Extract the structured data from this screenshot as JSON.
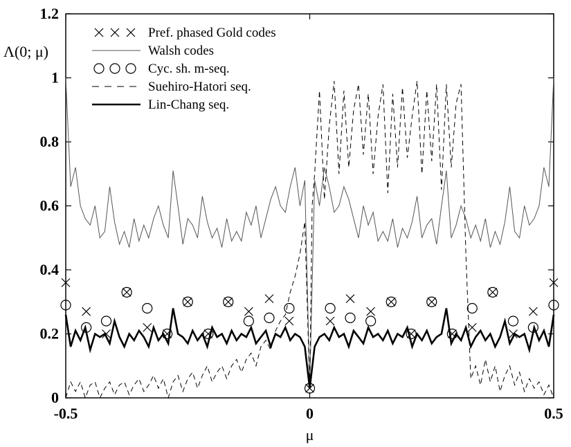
{
  "chart_data": {
    "type": "line",
    "title": "",
    "xlabel": "μ",
    "ylabel": "Λ(0; μ)",
    "xlim": [
      -0.5,
      0.5
    ],
    "ylim": [
      0,
      1.2
    ],
    "x_ticks": [
      "-0.5",
      "0",
      "0.5"
    ],
    "y_ticks": [
      "0",
      "0.2",
      "0.4",
      "0.6",
      "0.8",
      "1",
      "1.2"
    ],
    "grid": false,
    "legend_position": "top-left",
    "series": [
      {
        "name": "Pref. phased Gold codes",
        "style": "cross-markers",
        "x": [
          -0.5,
          -0.458,
          -0.417,
          -0.375,
          -0.333,
          -0.292,
          -0.25,
          -0.208,
          -0.167,
          -0.125,
          -0.083,
          -0.042,
          0.0,
          0.042,
          0.083,
          0.125,
          0.167,
          0.208,
          0.25,
          0.292,
          0.333,
          0.375,
          0.417,
          0.458,
          0.5
        ],
        "y": [
          0.36,
          0.27,
          0.2,
          0.33,
          0.22,
          0.2,
          0.3,
          0.2,
          0.3,
          0.27,
          0.31,
          0.24,
          0.03,
          0.24,
          0.31,
          0.27,
          0.3,
          0.2,
          0.3,
          0.2,
          0.22,
          0.33,
          0.2,
          0.27,
          0.36
        ]
      },
      {
        "name": "Walsh codes",
        "style": "thin-solid",
        "x": [
          -0.5,
          -0.49,
          -0.48,
          -0.47,
          -0.46,
          -0.45,
          -0.44,
          -0.43,
          -0.42,
          -0.41,
          -0.4,
          -0.39,
          -0.38,
          -0.37,
          -0.36,
          -0.35,
          -0.34,
          -0.33,
          -0.32,
          -0.31,
          -0.3,
          -0.29,
          -0.28,
          -0.27,
          -0.26,
          -0.25,
          -0.24,
          -0.23,
          -0.22,
          -0.21,
          -0.2,
          -0.19,
          -0.18,
          -0.17,
          -0.16,
          -0.15,
          -0.14,
          -0.13,
          -0.12,
          -0.11,
          -0.1,
          -0.09,
          -0.08,
          -0.07,
          -0.06,
          -0.05,
          -0.04,
          -0.03,
          -0.02,
          -0.01,
          0.0,
          0.01,
          0.02,
          0.03,
          0.04,
          0.05,
          0.06,
          0.07,
          0.08,
          0.09,
          0.1,
          0.11,
          0.12,
          0.13,
          0.14,
          0.15,
          0.16,
          0.17,
          0.18,
          0.19,
          0.2,
          0.21,
          0.22,
          0.23,
          0.24,
          0.25,
          0.26,
          0.27,
          0.28,
          0.29,
          0.3,
          0.31,
          0.32,
          0.33,
          0.34,
          0.35,
          0.36,
          0.37,
          0.38,
          0.39,
          0.4,
          0.41,
          0.42,
          0.43,
          0.44,
          0.45,
          0.46,
          0.47,
          0.48,
          0.49,
          0.5
        ],
        "y": [
          1.0,
          0.66,
          0.72,
          0.6,
          0.56,
          0.54,
          0.6,
          0.5,
          0.52,
          0.66,
          0.55,
          0.48,
          0.52,
          0.47,
          0.56,
          0.49,
          0.54,
          0.5,
          0.56,
          0.6,
          0.54,
          0.5,
          0.71,
          0.6,
          0.48,
          0.56,
          0.54,
          0.5,
          0.63,
          0.55,
          0.5,
          0.53,
          0.47,
          0.56,
          0.49,
          0.52,
          0.49,
          0.58,
          0.54,
          0.6,
          0.5,
          0.56,
          0.62,
          0.66,
          0.6,
          0.58,
          0.66,
          0.72,
          0.6,
          0.68,
          0.03,
          0.68,
          0.6,
          0.72,
          0.66,
          0.58,
          0.6,
          0.66,
          0.62,
          0.56,
          0.5,
          0.6,
          0.54,
          0.58,
          0.49,
          0.52,
          0.49,
          0.56,
          0.47,
          0.53,
          0.5,
          0.55,
          0.63,
          0.5,
          0.54,
          0.56,
          0.48,
          0.6,
          0.71,
          0.5,
          0.54,
          0.6,
          0.56,
          0.5,
          0.54,
          0.49,
          0.56,
          0.47,
          0.52,
          0.48,
          0.55,
          0.66,
          0.52,
          0.5,
          0.6,
          0.54,
          0.56,
          0.6,
          0.72,
          0.66,
          1.0
        ]
      },
      {
        "name": "Cyc. sh. m-seq.",
        "style": "circle-markers",
        "x": [
          -0.5,
          -0.458,
          -0.417,
          -0.375,
          -0.333,
          -0.292,
          -0.25,
          -0.208,
          -0.167,
          -0.125,
          -0.083,
          -0.042,
          0.0,
          0.042,
          0.083,
          0.125,
          0.167,
          0.208,
          0.25,
          0.292,
          0.333,
          0.375,
          0.417,
          0.458,
          0.5
        ],
        "y": [
          0.29,
          0.22,
          0.24,
          0.33,
          0.28,
          0.2,
          0.3,
          0.2,
          0.3,
          0.24,
          0.25,
          0.28,
          0.03,
          0.28,
          0.25,
          0.24,
          0.3,
          0.2,
          0.3,
          0.2,
          0.28,
          0.33,
          0.24,
          0.22,
          0.29
        ]
      },
      {
        "name": "Suehiro-Hatori seq.",
        "style": "dashed",
        "x": [
          -0.5,
          -0.49,
          -0.48,
          -0.47,
          -0.46,
          -0.45,
          -0.44,
          -0.43,
          -0.42,
          -0.41,
          -0.4,
          -0.39,
          -0.38,
          -0.37,
          -0.36,
          -0.35,
          -0.34,
          -0.33,
          -0.32,
          -0.31,
          -0.3,
          -0.29,
          -0.28,
          -0.27,
          -0.26,
          -0.25,
          -0.24,
          -0.23,
          -0.22,
          -0.21,
          -0.2,
          -0.19,
          -0.18,
          -0.17,
          -0.16,
          -0.15,
          -0.14,
          -0.13,
          -0.12,
          -0.11,
          -0.1,
          -0.09,
          -0.08,
          -0.07,
          -0.06,
          -0.05,
          -0.04,
          -0.03,
          -0.02,
          -0.01,
          0.0,
          0.005,
          0.01,
          0.02,
          0.03,
          0.04,
          0.05,
          0.06,
          0.07,
          0.08,
          0.09,
          0.1,
          0.11,
          0.12,
          0.13,
          0.14,
          0.15,
          0.16,
          0.17,
          0.18,
          0.19,
          0.2,
          0.21,
          0.22,
          0.23,
          0.24,
          0.25,
          0.26,
          0.27,
          0.28,
          0.29,
          0.3,
          0.31,
          0.32,
          0.33,
          0.34,
          0.35,
          0.36,
          0.37,
          0.38,
          0.39,
          0.4,
          0.41,
          0.42,
          0.43,
          0.44,
          0.45,
          0.46,
          0.47,
          0.48,
          0.49,
          0.5
        ],
        "y": [
          0.0,
          0.05,
          0.02,
          0.05,
          0.0,
          0.04,
          0.05,
          0.0,
          0.03,
          0.05,
          0.01,
          0.04,
          0.05,
          0.01,
          0.04,
          0.06,
          0.02,
          0.04,
          0.07,
          0.03,
          0.06,
          0.0,
          0.05,
          0.07,
          0.02,
          0.06,
          0.08,
          0.03,
          0.07,
          0.1,
          0.05,
          0.08,
          0.1,
          0.06,
          0.1,
          0.12,
          0.08,
          0.12,
          0.14,
          0.1,
          0.16,
          0.18,
          0.15,
          0.21,
          0.24,
          0.26,
          0.33,
          0.38,
          0.45,
          0.55,
          0.03,
          0.6,
          0.7,
          0.96,
          0.62,
          0.85,
          0.99,
          0.7,
          0.96,
          0.72,
          0.9,
          0.98,
          0.76,
          0.95,
          0.7,
          0.88,
          0.98,
          0.64,
          0.95,
          0.72,
          0.97,
          0.75,
          0.88,
          0.99,
          0.7,
          0.96,
          0.74,
          0.98,
          0.65,
          0.98,
          0.72,
          0.92,
          0.98,
          0.45,
          0.06,
          0.1,
          0.04,
          0.12,
          0.05,
          0.1,
          0.02,
          0.07,
          0.1,
          0.04,
          0.08,
          0.02,
          0.06,
          0.03,
          0.05,
          0.01,
          0.04,
          0.0
        ]
      },
      {
        "name": "Lin-Chang seq.",
        "style": "thick-solid",
        "x": [
          -0.5,
          -0.49,
          -0.48,
          -0.47,
          -0.46,
          -0.45,
          -0.44,
          -0.43,
          -0.42,
          -0.41,
          -0.4,
          -0.39,
          -0.38,
          -0.37,
          -0.36,
          -0.35,
          -0.34,
          -0.33,
          -0.32,
          -0.31,
          -0.3,
          -0.29,
          -0.28,
          -0.27,
          -0.26,
          -0.25,
          -0.24,
          -0.23,
          -0.22,
          -0.21,
          -0.2,
          -0.19,
          -0.18,
          -0.17,
          -0.16,
          -0.15,
          -0.14,
          -0.13,
          -0.12,
          -0.11,
          -0.1,
          -0.09,
          -0.08,
          -0.07,
          -0.06,
          -0.05,
          -0.04,
          -0.03,
          -0.02,
          -0.01,
          0.0,
          0.01,
          0.02,
          0.03,
          0.04,
          0.05,
          0.06,
          0.07,
          0.08,
          0.09,
          0.1,
          0.11,
          0.12,
          0.13,
          0.14,
          0.15,
          0.16,
          0.17,
          0.18,
          0.19,
          0.2,
          0.21,
          0.22,
          0.23,
          0.24,
          0.25,
          0.26,
          0.27,
          0.28,
          0.29,
          0.3,
          0.31,
          0.32,
          0.33,
          0.34,
          0.35,
          0.36,
          0.37,
          0.38,
          0.39,
          0.4,
          0.41,
          0.42,
          0.43,
          0.44,
          0.45,
          0.46,
          0.47,
          0.48,
          0.49,
          0.5
        ],
        "y": [
          0.26,
          0.16,
          0.21,
          0.18,
          0.22,
          0.15,
          0.2,
          0.19,
          0.2,
          0.17,
          0.24,
          0.19,
          0.16,
          0.2,
          0.18,
          0.21,
          0.19,
          0.16,
          0.22,
          0.18,
          0.2,
          0.17,
          0.28,
          0.2,
          0.19,
          0.17,
          0.21,
          0.18,
          0.2,
          0.16,
          0.22,
          0.19,
          0.2,
          0.17,
          0.21,
          0.18,
          0.2,
          0.19,
          0.22,
          0.17,
          0.19,
          0.21,
          0.16,
          0.2,
          0.19,
          0.22,
          0.18,
          0.2,
          0.19,
          0.16,
          0.03,
          0.16,
          0.19,
          0.2,
          0.18,
          0.22,
          0.19,
          0.2,
          0.16,
          0.21,
          0.19,
          0.17,
          0.22,
          0.19,
          0.2,
          0.18,
          0.21,
          0.17,
          0.2,
          0.19,
          0.22,
          0.16,
          0.2,
          0.18,
          0.21,
          0.17,
          0.19,
          0.2,
          0.28,
          0.17,
          0.2,
          0.18,
          0.22,
          0.16,
          0.19,
          0.21,
          0.18,
          0.2,
          0.16,
          0.19,
          0.24,
          0.17,
          0.2,
          0.19,
          0.2,
          0.15,
          0.22,
          0.18,
          0.21,
          0.16,
          0.26
        ]
      }
    ]
  },
  "colors": {
    "ink": "#000000",
    "background": "#ffffff",
    "walsh": "#555555"
  }
}
